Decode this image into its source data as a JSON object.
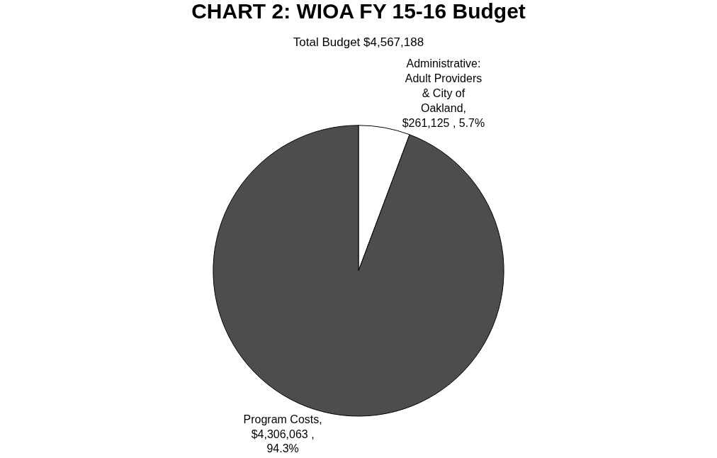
{
  "chart_data": {
    "type": "pie",
    "title": "CHART 2: WIOA FY 15-16 Budget",
    "subtitle": "Total Budget $4,567,188",
    "categories": [
      "Administrative:\nAdult Providers\n& City of\nOakland",
      "Program Costs"
    ],
    "values": [
      261125,
      4306063
    ],
    "value_labels": [
      ",\n$261,125 , 5.7%",
      ",\n$4,306,063 ,\n94.3%"
    ],
    "colors": [
      "#ffffff",
      "#4d4d4d"
    ],
    "legend": false
  }
}
